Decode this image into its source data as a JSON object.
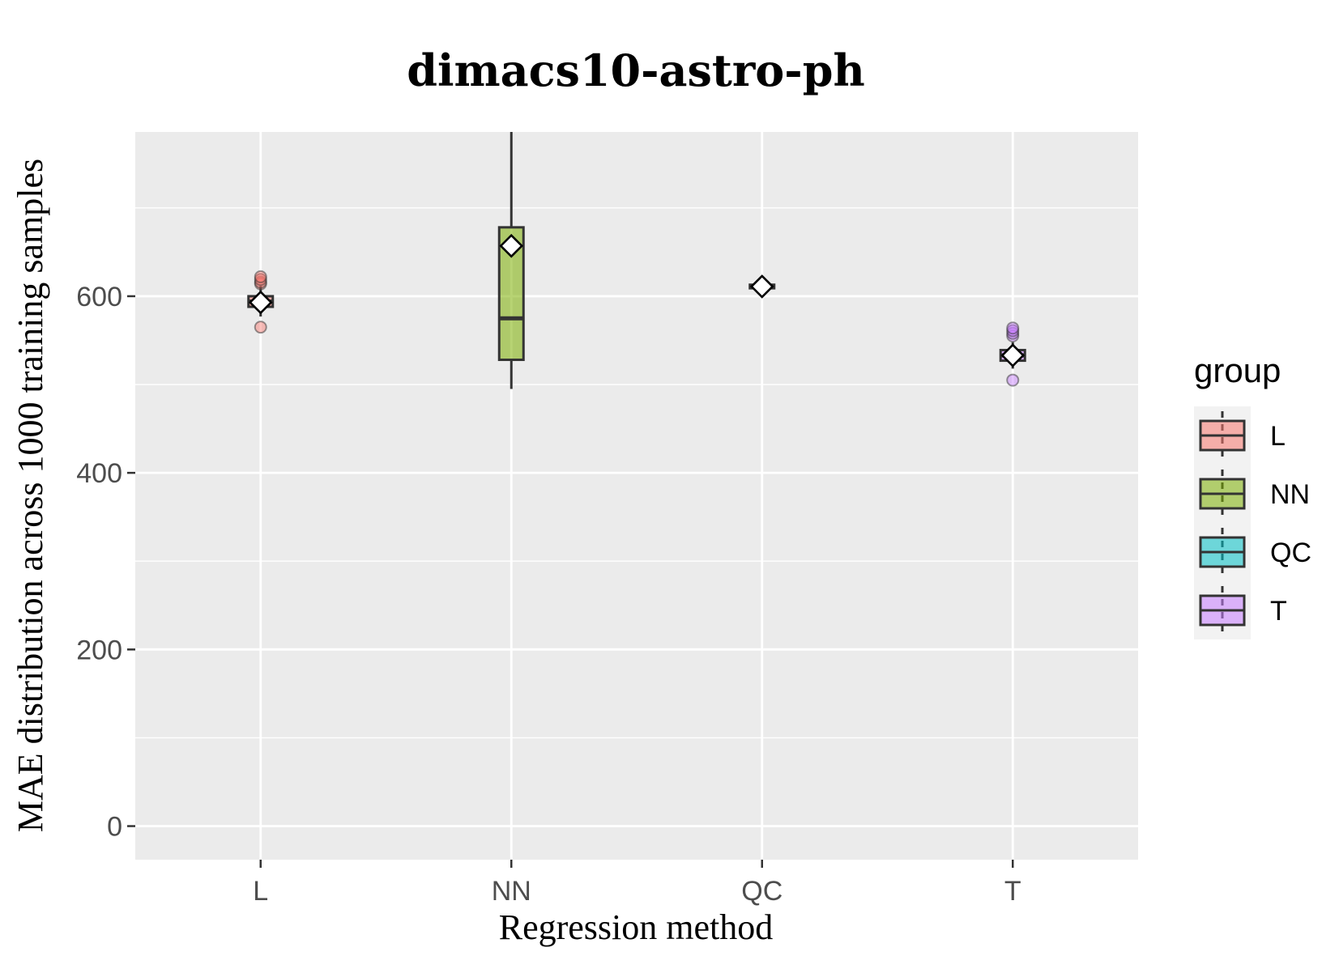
{
  "chart_data": {
    "type": "boxplot",
    "title": "dimacs10-astro-ph",
    "xlabel": "Regression method",
    "ylabel": "MAE distribution across 1000 training samples",
    "categories": [
      "L",
      "NN",
      "QC",
      "T"
    ],
    "ylim": [
      -38,
      786
    ],
    "yticks": [
      0,
      200,
      400,
      600
    ],
    "grid": true,
    "legend": {
      "title": "group",
      "placement": "right",
      "entries": [
        "L",
        "NN",
        "QC",
        "T"
      ]
    },
    "series": [
      {
        "name": "L",
        "color": "#F8766D",
        "q1": 588,
        "median": 594,
        "q3": 600,
        "whisker_low": 577,
        "whisker_high": 612,
        "mean": 593,
        "outliers": [
          565,
          614,
          616,
          619,
          622
        ]
      },
      {
        "name": "NN",
        "color": "#7CAE00",
        "q1": 528,
        "median": 575,
        "q3": 678,
        "whisker_low": 495,
        "whisker_high": 786,
        "mean": 657,
        "outliers": []
      },
      {
        "name": "QC",
        "color": "#00BFC4",
        "q1": 609,
        "median": 611,
        "q3": 613,
        "whisker_low": 606,
        "whisker_high": 617,
        "mean": 611,
        "outliers": []
      },
      {
        "name": "T",
        "color": "#C77CFF",
        "q1": 527,
        "median": 533,
        "q3": 539,
        "whisker_low": 518,
        "whisker_high": 548,
        "mean": 533,
        "outliers": [
          505,
          555,
          558,
          561,
          564
        ]
      }
    ]
  }
}
